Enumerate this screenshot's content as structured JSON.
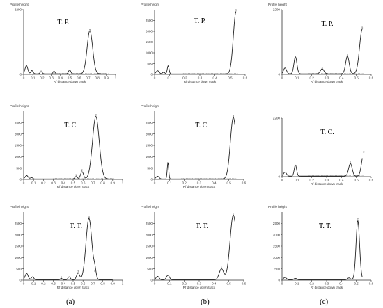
{
  "chart_data": [
    {
      "type": "line",
      "title": "T. P.",
      "ylabel": "Profile height",
      "xlabel": "Rf distance down track",
      "xlim": [
        0,
        1
      ],
      "xticks": [
        "0",
        "0.1",
        "0.2",
        "0.3",
        "0.4",
        "0.5",
        "0.6",
        "0.7",
        "0.8",
        "0.9",
        "1"
      ],
      "ylim": [
        0,
        2200
      ],
      "yticks": [
        "0",
        "2200"
      ],
      "peaks": [
        {
          "x": 0.03,
          "y": 280,
          "w": 0.015
        },
        {
          "x": 0.09,
          "y": 110,
          "w": 0.012
        },
        {
          "x": 0.19,
          "y": 70,
          "w": 0.012,
          "label": "2"
        },
        {
          "x": 0.33,
          "y": 90,
          "w": 0.01
        },
        {
          "x": 0.5,
          "y": 130,
          "w": 0.012
        },
        {
          "x": 0.72,
          "y": 1470,
          "w": 0.03,
          "label": "4"
        }
      ]
    },
    {
      "type": "line",
      "title": "T. P.",
      "ylabel": "Profile height",
      "xlabel": "Rf distance down track",
      "xlim": [
        0,
        0.6
      ],
      "xticks": [
        "0",
        "0.1",
        "0.2",
        "0.3",
        "0.4",
        "0.5",
        "0.6"
      ],
      "ylim": [
        0,
        3000
      ],
      "yticks": [
        "0",
        "500",
        "1000",
        "1500",
        "2000",
        "2500"
      ],
      "peaks": [
        {
          "x": 0.02,
          "y": 150,
          "w": 0.01
        },
        {
          "x": 0.06,
          "y": 80,
          "w": 0.008
        },
        {
          "x": 0.09,
          "y": 380,
          "w": 0.006
        },
        {
          "x": 0.54,
          "y": 2900,
          "w": 0.018,
          "label": "1"
        }
      ]
    },
    {
      "type": "line",
      "title": "T. P.",
      "ylabel": "Profile height",
      "xlabel": "Rf distance down track",
      "xlim": [
        0,
        0.6
      ],
      "xticks": [
        "0",
        "0.1",
        "0.2",
        "0.3",
        "0.4",
        "0.5",
        "0.6"
      ],
      "ylim": [
        0,
        2200
      ],
      "yticks": [
        "0",
        "2200"
      ],
      "peaks": [
        {
          "x": 0.02,
          "y": 200,
          "w": 0.01
        },
        {
          "x": 0.09,
          "y": 580,
          "w": 0.01
        },
        {
          "x": 0.27,
          "y": 170,
          "w": 0.012,
          "label": "3"
        },
        {
          "x": 0.44,
          "y": 600,
          "w": 0.012,
          "label": "4"
        },
        {
          "x": 0.54,
          "y": 1520,
          "w": 0.018,
          "label": "5"
        }
      ]
    },
    {
      "type": "line",
      "title": "T. C.",
      "ylabel": "Profile height",
      "xlabel": "Rf distance down track",
      "xlim": [
        0,
        1
      ],
      "xticks": [
        "0",
        "0.1",
        "0.2",
        "0.3",
        "0.4",
        "0.5",
        "0.6",
        "0.7",
        "0.8",
        "0.9",
        "1"
      ],
      "ylim": [
        0,
        3000
      ],
      "yticks": [
        "0",
        "500",
        "1000",
        "1500",
        "2000",
        "2500"
      ],
      "peaks": [
        {
          "x": 0.03,
          "y": 150,
          "w": 0.015
        },
        {
          "x": 0.08,
          "y": 60,
          "w": 0.012
        },
        {
          "x": 0.53,
          "y": 110,
          "w": 0.012,
          "label": "1"
        },
        {
          "x": 0.59,
          "y": 320,
          "w": 0.015,
          "label": "2"
        },
        {
          "x": 0.73,
          "y": 2750,
          "w": 0.034,
          "label": "3"
        }
      ]
    },
    {
      "type": "line",
      "title": "T. C.",
      "ylabel": "Profile height",
      "xlabel": "Rf distance down track",
      "xlim": [
        0,
        0.6
      ],
      "xticks": [
        "0",
        "0.1",
        "0.2",
        "0.3",
        "0.4",
        "0.5",
        "0.6"
      ],
      "ylim": [
        0,
        3000
      ],
      "yticks": [
        "0",
        "500",
        "1000",
        "1500",
        "2000",
        "2500"
      ],
      "peaks": [
        {
          "x": 0.02,
          "y": 120,
          "w": 0.01
        },
        {
          "x": 0.09,
          "y": 720,
          "w": 0.005
        },
        {
          "x": 0.53,
          "y": 2700,
          "w": 0.02,
          "label": "4"
        }
      ]
    },
    {
      "type": "line",
      "title": "T. C.",
      "ylabel": "",
      "xlabel": "Rf distance down track",
      "xlim": [
        0,
        0.6
      ],
      "xticks": [
        "0",
        "0.1",
        "0.2",
        "0.3",
        "0.4",
        "0.5",
        "0.6"
      ],
      "ylim": [
        0,
        2200
      ],
      "yticks": [
        "0",
        "2200"
      ],
      "peaks": [
        {
          "x": 0.02,
          "y": 150,
          "w": 0.01
        },
        {
          "x": 0.09,
          "y": 420,
          "w": 0.008
        },
        {
          "x": 0.46,
          "y": 470,
          "w": 0.012,
          "label": "1"
        },
        {
          "x": 0.55,
          "y": 870,
          "w": 0.014,
          "label": "2"
        }
      ]
    },
    {
      "type": "line",
      "title": "T. T.",
      "ylabel": "Profile height",
      "xlabel": "Rf distance down track",
      "xlim": [
        0,
        1
      ],
      "xticks": [
        "0",
        "0.1",
        "0.2",
        "0.3",
        "0.4",
        "0.5",
        "0.6",
        "0.7",
        "0.8",
        "0.9",
        "1"
      ],
      "ylim": [
        0,
        3000
      ],
      "yticks": [
        "0",
        "500",
        "1000",
        "1500",
        "2000",
        "2500"
      ],
      "peaks": [
        {
          "x": 0.03,
          "y": 280,
          "w": 0.015
        },
        {
          "x": 0.09,
          "y": 130,
          "w": 0.012
        },
        {
          "x": 0.38,
          "y": 60,
          "w": 0.01,
          "label": "1"
        },
        {
          "x": 0.46,
          "y": 130,
          "w": 0.012
        },
        {
          "x": 0.55,
          "y": 300,
          "w": 0.015,
          "label": "3"
        },
        {
          "x": 0.66,
          "y": 2700,
          "w": 0.03,
          "label": "4"
        },
        {
          "x": 0.72,
          "y": 320,
          "w": 0.012,
          "label": "5"
        }
      ]
    },
    {
      "type": "line",
      "title": "T. T.",
      "ylabel": "Profile height",
      "xlabel": "Rf distance down track",
      "xlim": [
        0,
        0.6
      ],
      "xticks": [
        "0",
        "0.1",
        "0.2",
        "0.3",
        "0.4",
        "0.5",
        "0.6"
      ],
      "ylim": [
        0,
        3000
      ],
      "yticks": [
        "0",
        "500",
        "1000",
        "1500",
        "2000",
        "2500"
      ],
      "peaks": [
        {
          "x": 0.02,
          "y": 150,
          "w": 0.01
        },
        {
          "x": 0.09,
          "y": 200,
          "w": 0.01
        },
        {
          "x": 0.45,
          "y": 480,
          "w": 0.015,
          "label": "1"
        },
        {
          "x": 0.53,
          "y": 2850,
          "w": 0.022,
          "label": "2"
        }
      ]
    },
    {
      "type": "line",
      "title": "T. T.",
      "ylabel": "Profile height",
      "xlabel": "Rf distance down track",
      "xlim": [
        0,
        0.6
      ],
      "xticks": [
        "0",
        "0.1",
        "0.2",
        "0.3",
        "0.4",
        "0.5",
        "0.6"
      ],
      "ylim": [
        0,
        3000
      ],
      "yticks": [
        "0",
        "500",
        "1000",
        "1500",
        "2000",
        "2500"
      ],
      "peaks": [
        {
          "x": 0.02,
          "y": 100,
          "w": 0.01
        },
        {
          "x": 0.09,
          "y": 60,
          "w": 0.01
        },
        {
          "x": 0.45,
          "y": 80,
          "w": 0.01
        },
        {
          "x": 0.51,
          "y": 2600,
          "w": 0.012,
          "label": "2"
        }
      ]
    }
  ],
  "captions": [
    "(a)",
    "(b)",
    "(c)"
  ]
}
